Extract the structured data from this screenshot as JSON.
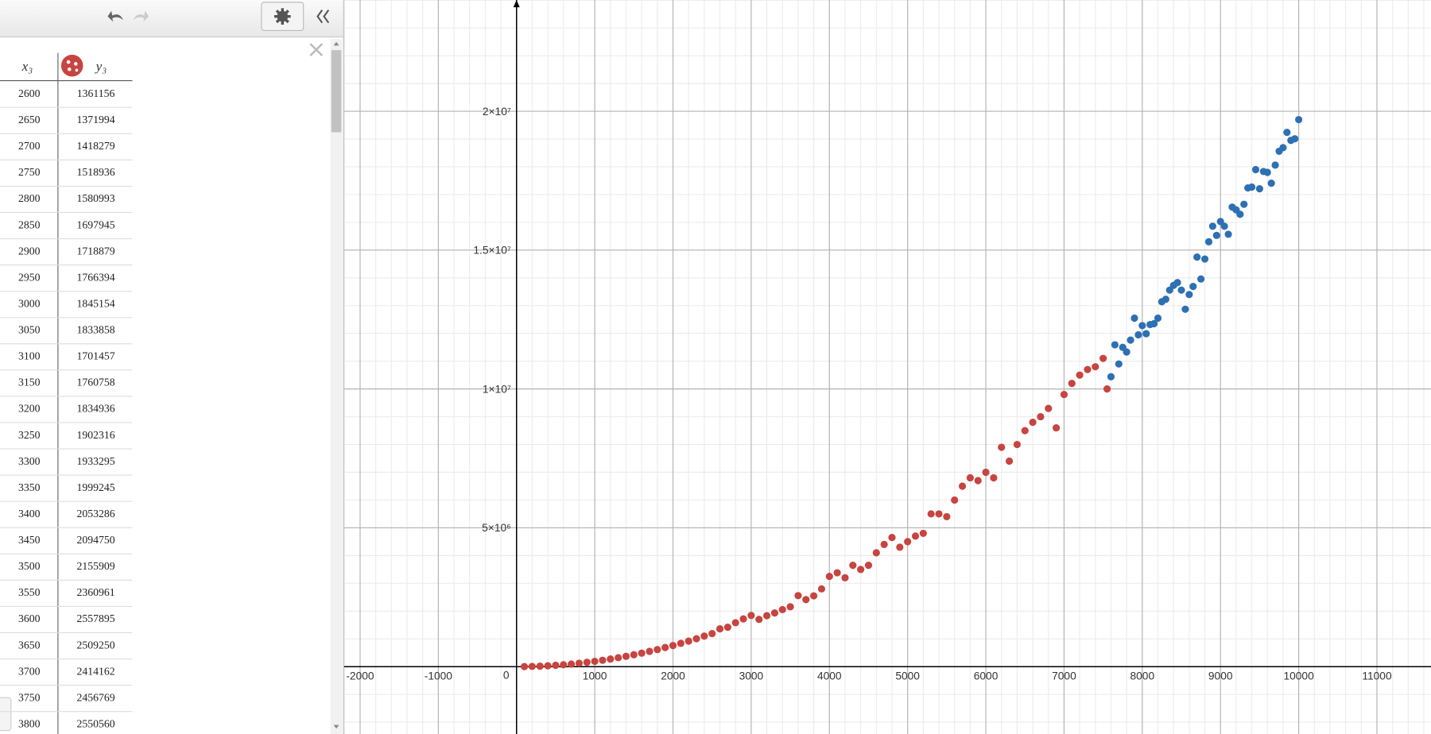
{
  "table": {
    "columns": [
      "x₃",
      "y₃"
    ],
    "rows": [
      [
        2600,
        1361156
      ],
      [
        2650,
        1371994
      ],
      [
        2700,
        1418279
      ],
      [
        2750,
        1518936
      ],
      [
        2800,
        1580993
      ],
      [
        2850,
        1697945
      ],
      [
        2900,
        1718879
      ],
      [
        2950,
        1766394
      ],
      [
        3000,
        1845154
      ],
      [
        3050,
        1833858
      ],
      [
        3100,
        1701457
      ],
      [
        3150,
        1760758
      ],
      [
        3200,
        1834936
      ],
      [
        3250,
        1902316
      ],
      [
        3300,
        1933295
      ],
      [
        3350,
        1999245
      ],
      [
        3400,
        2053286
      ],
      [
        3450,
        2094750
      ],
      [
        3500,
        2155909
      ],
      [
        3550,
        2360961
      ],
      [
        3600,
        2557895
      ],
      [
        3650,
        2509250
      ],
      [
        3700,
        2414162
      ],
      [
        3750,
        2456769
      ],
      [
        3800,
        2550560
      ]
    ]
  },
  "chart_data": {
    "type": "scatter",
    "xlim": [
      -2205,
      11692
    ],
    "ylim": [
      -2430000,
      24007000
    ],
    "xticks": [
      -2000,
      -1000,
      0,
      1000,
      2000,
      3000,
      4000,
      5000,
      6000,
      7000,
      8000,
      9000,
      10000,
      11000
    ],
    "yticks": [
      {
        "value": 5000000,
        "label": "5×10⁶"
      },
      {
        "value": 10000000,
        "label": "1×10⁷"
      },
      {
        "value": 15000000,
        "label": "1.5×10⁷"
      },
      {
        "value": 20000000,
        "label": "2×10⁷"
      }
    ],
    "grid": true,
    "series": [
      {
        "color": "#c74440",
        "x": [
          100,
          200,
          300,
          400,
          500,
          600,
          700,
          800,
          900,
          1000,
          1100,
          1200,
          1300,
          1400,
          1500,
          1600,
          1700,
          1800,
          1900,
          2000,
          2100,
          2200,
          2300,
          2400,
          2500,
          2600,
          2700,
          2800,
          2900,
          3000,
          3100,
          3200,
          3300,
          3400,
          3500,
          3600,
          3700,
          3800,
          3900,
          4000,
          4100,
          4200,
          4300,
          4400,
          4500,
          4600,
          4700,
          4800,
          4900,
          5000,
          5100,
          5200,
          5300,
          5400,
          5500,
          5600,
          5700,
          5800,
          5900,
          6000,
          6100,
          6200,
          6300,
          6400,
          6500,
          6600,
          6700,
          6800,
          6900,
          7000,
          7100,
          7200,
          7300,
          7400,
          7500,
          7550
        ],
        "values": [
          2000,
          8000,
          17000,
          30000,
          48000,
          68000,
          93000,
          122000,
          155000,
          190000,
          230000,
          275000,
          322000,
          372000,
          428000,
          486000,
          550000,
          615000,
          690000,
          760000,
          840000,
          920000,
          1005000,
          1100000,
          1190000,
          1361156,
          1418279,
          1580993,
          1718879,
          1845154,
          1701457,
          1834936,
          1933295,
          2053286,
          2155909,
          2557895,
          2414162,
          2550560,
          2800000,
          3250000,
          3380000,
          3200000,
          3650000,
          3500000,
          3650000,
          4100000,
          4400000,
          4650000,
          4300000,
          4500000,
          4700000,
          4800000,
          5500000,
          5500000,
          5400000,
          6000000,
          6500000,
          6800000,
          6700000,
          7000000,
          6800000,
          7900000,
          7400000,
          8000000,
          8500000,
          8800000,
          9000000,
          9300000,
          8600000,
          9800000,
          10200000,
          10500000,
          10700000,
          10800000,
          11100000,
          10000000
        ]
      },
      {
        "color": "#2d70b3",
        "x": [
          7600,
          7650,
          7700,
          7750,
          7800,
          7850,
          7900,
          7950,
          8000,
          8050,
          8100,
          8150,
          8200,
          8250,
          8300,
          8350,
          8400,
          8450,
          8500,
          8550,
          8600,
          8650,
          8700,
          8750,
          8800,
          8850,
          8900,
          8950,
          9000,
          9050,
          9100,
          9150,
          9200,
          9250,
          9300,
          9350,
          9400,
          9450,
          9500,
          9550,
          9600,
          9650,
          9700,
          9750,
          9800,
          9850,
          9900,
          9950,
          10000
        ],
        "values": [
          10440000,
          11590000,
          10900000,
          11500000,
          11330000,
          11760000,
          12550000,
          11950000,
          12280000,
          11990000,
          12320000,
          12350000,
          12550000,
          13140000,
          13230000,
          13560000,
          13730000,
          13830000,
          13560000,
          12870000,
          13400000,
          13690000,
          14750000,
          13960000,
          14680000,
          15300000,
          15860000,
          15530000,
          16030000,
          15860000,
          15570000,
          16550000,
          16450000,
          16290000,
          16650000,
          17240000,
          17270000,
          17900000,
          17210000,
          17830000,
          17800000,
          17410000,
          18060000,
          18560000,
          18690000,
          19240000,
          18950000,
          19010000,
          19700000
        ]
      }
    ]
  }
}
